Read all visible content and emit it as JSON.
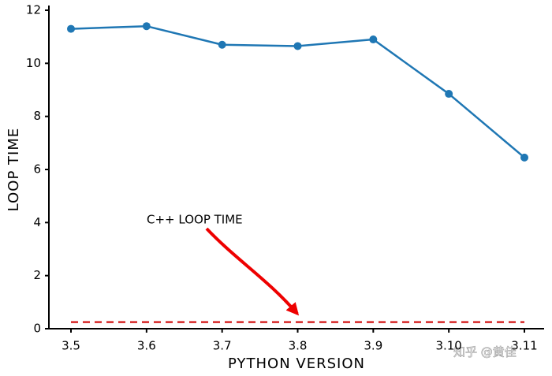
{
  "chart_data": {
    "type": "line",
    "x_label": "PYTHON VERSION",
    "y_label": "LOOP TIME",
    "annotation": "C++ LOOP TIME",
    "watermark": "知乎 @黄佳",
    "categories": [
      "3.5",
      "3.6",
      "3.7",
      "3.8",
      "3.9",
      "3.10",
      "3.11"
    ],
    "series": [
      {
        "color": "#1f77b4",
        "line_style": "solid",
        "markers": true,
        "values": [
          11.3,
          11.4,
          10.7,
          10.65,
          10.9,
          8.85,
          6.45
        ]
      },
      {
        "color": "#d62728",
        "line_style": "dashed",
        "markers": false,
        "values": [
          0.25,
          0.25,
          0.25,
          0.25,
          0.25,
          0.25,
          0.25
        ]
      }
    ],
    "ylim": [
      0,
      12
    ],
    "yticks": [
      0,
      2,
      4,
      6,
      8,
      10,
      12
    ],
    "grid": false
  }
}
